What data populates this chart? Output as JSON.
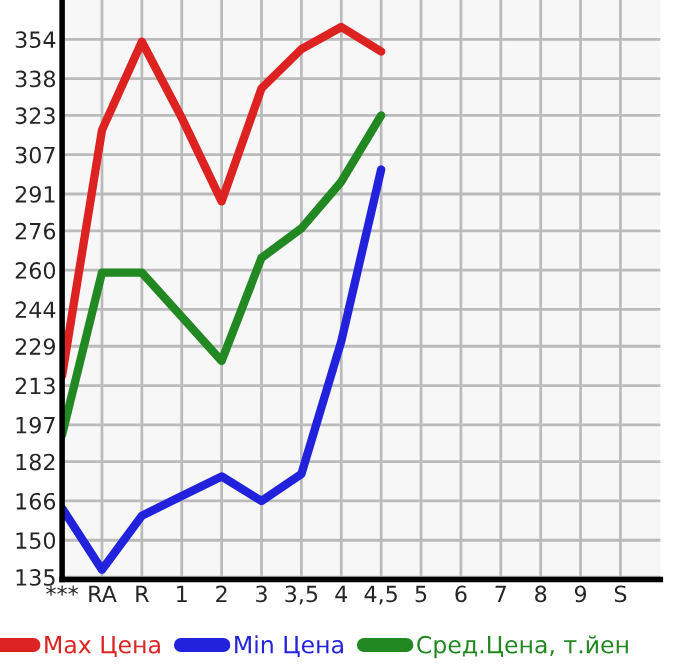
{
  "chart_data": {
    "type": "line",
    "categories": [
      "***",
      "RA",
      "R",
      "1",
      "2",
      "3",
      "3,5",
      "4",
      "4,5",
      "5",
      "6",
      "7",
      "8",
      "9",
      "S"
    ],
    "ylim": [
      134,
      370
    ],
    "yticks": [
      135,
      150,
      166,
      182,
      197,
      213,
      229,
      244,
      260,
      276,
      291,
      307,
      323,
      338,
      354
    ],
    "grid": true,
    "legend": "bottom",
    "marker": "none",
    "line_style": "solid",
    "series": [
      {
        "name": "Max Цена",
        "color": "#dd2222",
        "values": [
          217,
          317,
          353,
          322,
          288,
          334,
          350,
          359,
          349,
          null,
          null,
          null,
          null,
          null,
          null
        ]
      },
      {
        "name": "Min Цена",
        "color": "#2222dd",
        "values": [
          163,
          138,
          160,
          168,
          176,
          166,
          177,
          231,
          301,
          null,
          null,
          null,
          null,
          null,
          null
        ]
      },
      {
        "name": "Сред.Цена, т.йен",
        "color": "#228822",
        "values": [
          193,
          259,
          259,
          241,
          223,
          265,
          277,
          296,
          323,
          null,
          null,
          null,
          null,
          null,
          null
        ]
      }
    ]
  }
}
